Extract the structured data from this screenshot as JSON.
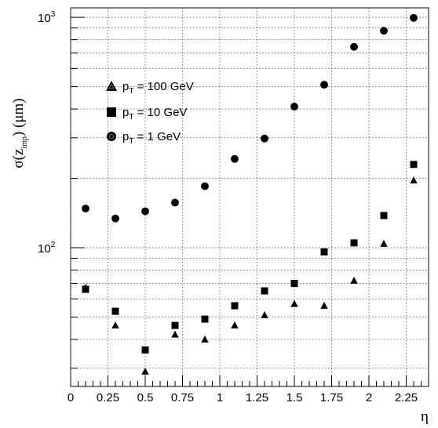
{
  "chart_data": {
    "type": "scatter",
    "xlabel": "η",
    "ylabel": "σ(z_imp) (μm)",
    "xlim": [
      0,
      2.4
    ],
    "ylim": [
      25,
      1100
    ],
    "y_scale": "log",
    "grid": true,
    "grid_style": "dotted",
    "legend_position": "top-left",
    "x_ticks": [
      "0",
      "0.25",
      "0.5",
      "0.75",
      "1",
      "1.25",
      "1.5",
      "1.75",
      "2",
      "2.25"
    ],
    "y_ticks": [
      {
        "value": 100,
        "base": "10",
        "exponent": "2"
      },
      {
        "value": 1000,
        "base": "10",
        "exponent": "3"
      }
    ],
    "series": [
      {
        "name": "p_T = 100 GeV",
        "marker": "triangle",
        "x": [
          0.1,
          0.3,
          0.5,
          0.7,
          0.9,
          1.1,
          1.3,
          1.5,
          1.7,
          1.9,
          2.1,
          2.3
        ],
        "y": [
          67,
          46,
          29,
          42,
          40,
          46,
          51,
          57,
          56,
          72,
          104,
          196
        ]
      },
      {
        "name": "p_T = 10 GeV",
        "marker": "square",
        "x": [
          0.1,
          0.3,
          0.5,
          0.7,
          0.9,
          1.1,
          1.3,
          1.5,
          1.7,
          1.9,
          2.1,
          2.3
        ],
        "y": [
          66,
          53,
          36,
          46,
          49,
          56,
          65,
          70,
          96,
          105,
          138,
          230
        ]
      },
      {
        "name": "p_T = 1 GeV",
        "marker": "circle",
        "x": [
          0.1,
          0.3,
          0.5,
          0.7,
          0.9,
          1.1,
          1.3,
          1.5,
          1.7,
          1.9,
          2.1,
          2.3
        ],
        "y": [
          148,
          134,
          144,
          157,
          185,
          243,
          298,
          410,
          510,
          745,
          875,
          995
        ]
      }
    ]
  }
}
